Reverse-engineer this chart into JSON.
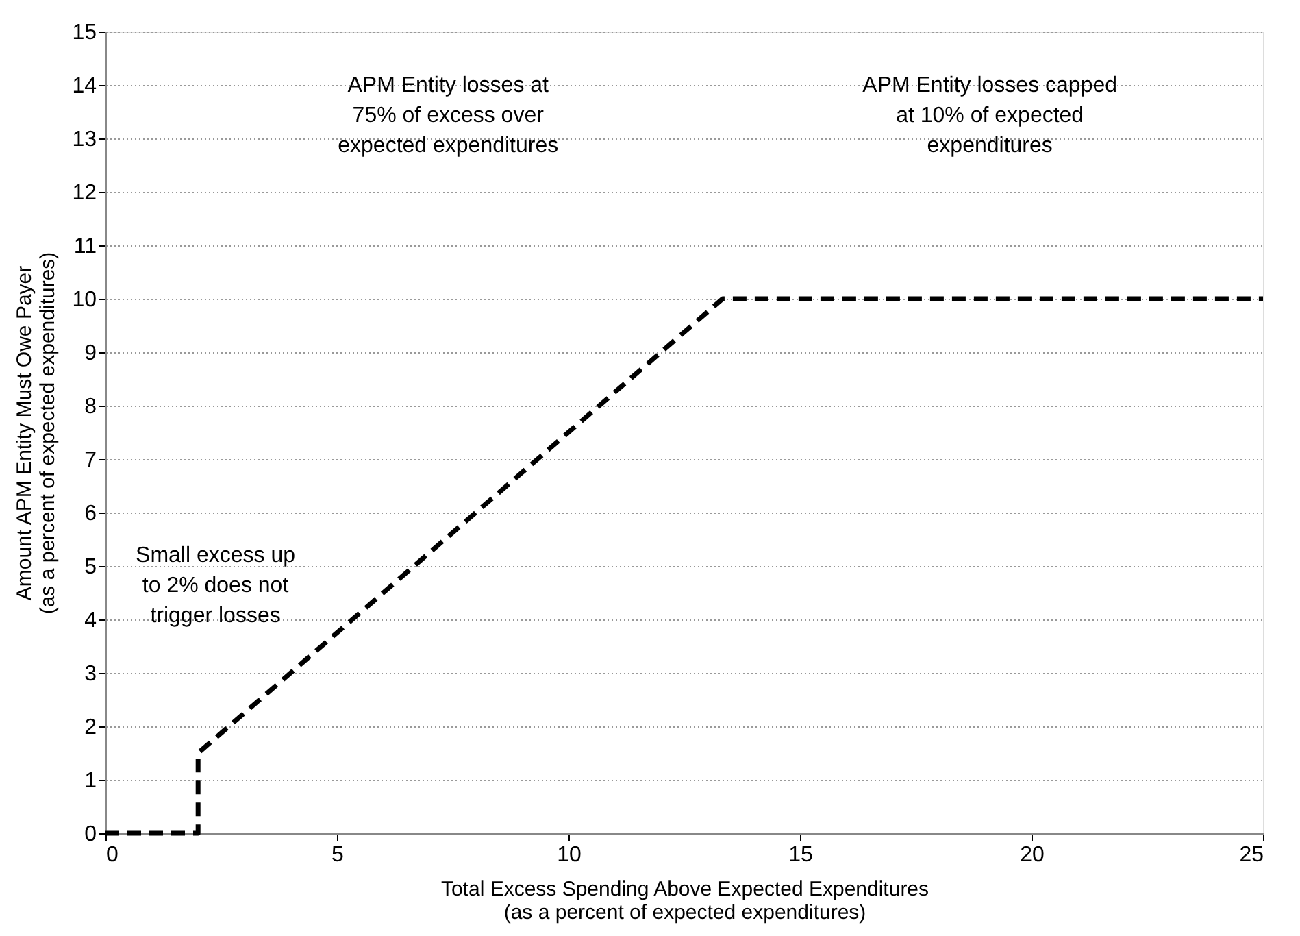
{
  "chart_data": {
    "type": "line",
    "xlabel": "Total Excess Spending Above Expected Expenditures\n(as a percent of expected expenditures)",
    "ylabel": "Amount APM Entity Must Owe Payer\n(as a percent of expected expenditures)",
    "series": [
      {
        "color": "#000000",
        "x": [
          0,
          2,
          2,
          13.33,
          25
        ],
        "values": [
          0,
          0,
          1.5,
          10,
          10
        ]
      }
    ],
    "xlim": [
      0,
      25
    ],
    "xticks": [
      0,
      5,
      10,
      15,
      20,
      25
    ],
    "ylim": [
      0,
      15
    ],
    "yticks": [
      0,
      1,
      2,
      3,
      4,
      5,
      6,
      7,
      8,
      9,
      10,
      11,
      12,
      13,
      14,
      15
    ],
    "grid": "y",
    "line_style": "dashed",
    "marker": "none",
    "annotations": [
      "Small excess up\nto 2% does not\ntrigger losses",
      "APM Entity losses at\n75% of excess over\nexpected expenditures",
      "APM Entity losses capped\nat 10% of expected\nexpenditures"
    ]
  }
}
